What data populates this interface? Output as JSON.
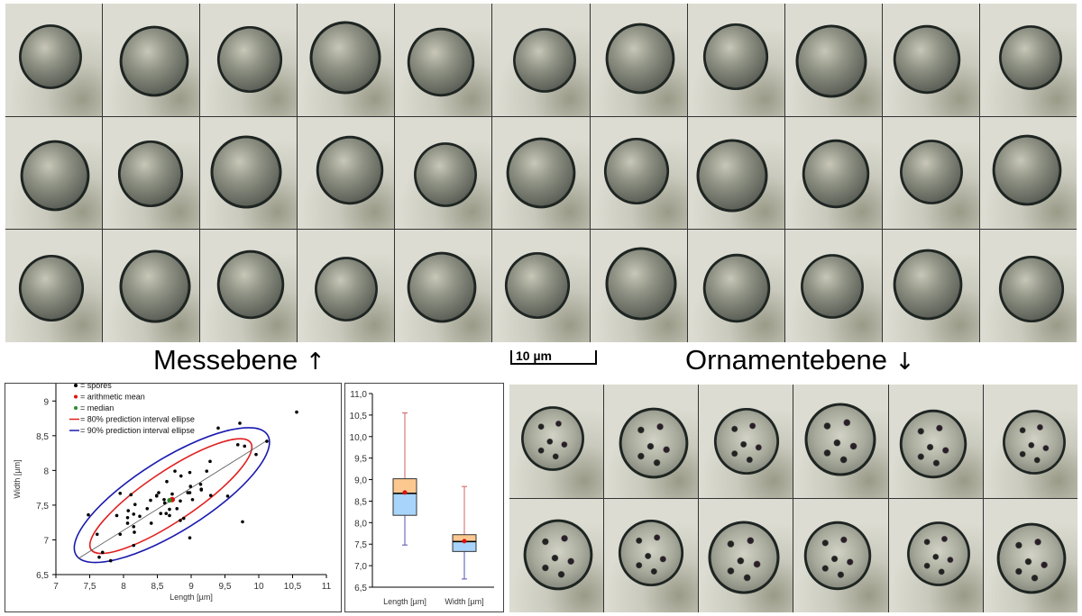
{
  "labels": {
    "measure_plane": "Messebene",
    "measure_plane_arrow": "↑",
    "ornament_plane": "Ornamentebene",
    "ornament_plane_arrow": "↓",
    "scale_bar": "10 µm"
  },
  "colors": {
    "ellipse80": "#e02020",
    "ellipse90": "#1a1ab0",
    "mean": "#e01010",
    "median": "#2a8a2a",
    "upper_box": "#fcc890",
    "lower_box": "#a8d4fc",
    "upper_whisker": "#d06060",
    "lower_whisker": "#5050b0"
  },
  "chart_data": [
    {
      "type": "scatter",
      "xlabel": "Length [µm]",
      "ylabel": "Width [µm]",
      "xlim": [
        7,
        11
      ],
      "ylim": [
        6.5,
        9.25
      ],
      "xticks": [
        "7",
        "7,5",
        "8",
        "8,5",
        "9",
        "9,5",
        "10",
        "10,5",
        "11"
      ],
      "xtick_values": [
        7,
        7.5,
        8,
        8.5,
        9,
        9.5,
        10,
        10.5,
        11
      ],
      "yticks": [
        "6,5",
        "7",
        "7,5",
        "8",
        "8,5",
        "9"
      ],
      "ytick_values": [
        6.5,
        7,
        7.5,
        8,
        8.5,
        9
      ],
      "legend": {
        "placement": "top-left",
        "entries": [
          "= spores",
          "= arithmetic mean",
          "= median",
          "= 80% prediction interval ellipse",
          "= 90% prediction interval ellipse"
        ]
      },
      "points": [
        [
          7.48,
          7.36
        ],
        [
          7.61,
          7.08
        ],
        [
          7.69,
          6.82
        ],
        [
          7.64,
          6.75
        ],
        [
          7.81,
          6.7
        ],
        [
          7.95,
          7.67
        ],
        [
          7.95,
          7.08
        ],
        [
          7.9,
          7.35
        ],
        [
          8.07,
          7.42
        ],
        [
          8.06,
          7.32
        ],
        [
          8.06,
          7.24
        ],
        [
          8.11,
          7.65
        ],
        [
          8.15,
          7.37
        ],
        [
          8.17,
          7.51
        ],
        [
          8.15,
          7.19
        ],
        [
          8.16,
          7.11
        ],
        [
          8.15,
          6.92
        ],
        [
          8.24,
          7.34
        ],
        [
          8.4,
          7.57
        ],
        [
          8.41,
          7.24
        ],
        [
          8.35,
          7.45
        ],
        [
          8.49,
          7.64
        ],
        [
          8.52,
          7.68
        ],
        [
          8.49,
          7.63
        ],
        [
          8.55,
          7.38
        ],
        [
          8.6,
          7.58
        ],
        [
          8.61,
          7.53
        ],
        [
          8.64,
          7.84
        ],
        [
          8.63,
          7.38
        ],
        [
          8.68,
          7.35
        ],
        [
          8.68,
          7.44
        ],
        [
          8.72,
          7.66
        ],
        [
          8.76,
          7.99
        ],
        [
          8.79,
          7.45
        ],
        [
          8.84,
          7.56
        ],
        [
          8.85,
          7.92
        ],
        [
          8.84,
          7.28
        ],
        [
          8.89,
          7.31
        ],
        [
          8.98,
          7.97
        ],
        [
          8.95,
          7.68
        ],
        [
          8.98,
          7.68
        ],
        [
          8.99,
          7.77
        ],
        [
          9.02,
          7.58
        ],
        [
          8.98,
          7.03
        ],
        [
          9.14,
          7.8
        ],
        [
          9.15,
          7.73
        ],
        [
          9.15,
          7.72
        ],
        [
          9.23,
          7.99
        ],
        [
          9.28,
          8.13
        ],
        [
          9.29,
          7.64
        ],
        [
          9.4,
          8.61
        ],
        [
          9.54,
          7.63
        ],
        [
          9.69,
          8.37
        ],
        [
          9.72,
          8.68
        ],
        [
          9.79,
          8.35
        ],
        [
          9.76,
          7.26
        ],
        [
          9.96,
          8.23
        ],
        [
          10.12,
          8.42
        ],
        [
          10.56,
          8.84
        ]
      ],
      "mean": [
        8.72,
        7.58
      ],
      "median": [
        8.68,
        7.57
      ],
      "regression_line": [
        [
          7.33,
          6.73
        ],
        [
          10.12,
          8.43
        ]
      ],
      "ellipses": [
        {
          "name": "80% prediction interval ellipse",
          "major_axis": [
            [
              7.52,
              6.86
            ],
            [
              9.88,
              8.4
            ]
          ],
          "minor_to_major_ratio": 0.26
        },
        {
          "name": "90% prediction interval ellipse",
          "major_axis": [
            [
              7.3,
              6.78
            ],
            [
              10.13,
              8.51
            ]
          ],
          "minor_to_major_ratio": 0.32
        }
      ]
    },
    {
      "type": "box",
      "ylim": [
        6.5,
        11.0
      ],
      "yticks": [
        "6,5",
        "7,0",
        "7,5",
        "8,0",
        "8,5",
        "9,0",
        "9,5",
        "10,0",
        "10,5",
        "11,0"
      ],
      "ytick_values": [
        6.5,
        7,
        7.5,
        8,
        8.5,
        9,
        9.5,
        10,
        10.5,
        11
      ],
      "categories": [
        "Length [µm]",
        "Width [µm]"
      ],
      "series": [
        {
          "name": "Length [µm]",
          "min": 7.48,
          "q1": 8.17,
          "median": 8.68,
          "q3": 9.02,
          "max": 10.55,
          "mean": 8.7
        },
        {
          "name": "Width [µm]",
          "min": 6.69,
          "q1": 7.33,
          "median": 7.56,
          "q3": 7.72,
          "max": 8.84,
          "mean": 7.57
        }
      ]
    }
  ]
}
